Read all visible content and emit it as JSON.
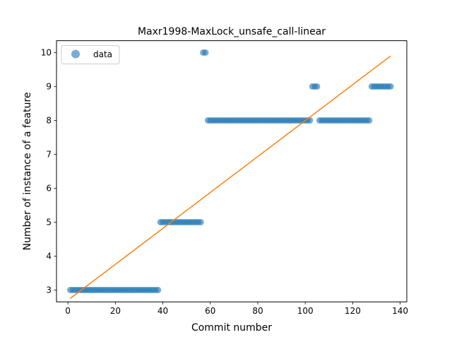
{
  "chart_data": {
    "type": "scatter",
    "title": "Maxr1998-MaxLock_unsafe_call-linear",
    "xlabel": "Commit number",
    "ylabel": "Number of instance of a feature",
    "xlim": [
      -4.8,
      142.8
    ],
    "ylim": [
      2.65,
      10.35
    ],
    "xticks": [
      0,
      20,
      40,
      60,
      80,
      100,
      120,
      140
    ],
    "yticks": [
      3,
      4,
      5,
      6,
      7,
      8,
      9,
      10
    ],
    "grid": false,
    "legend": {
      "placement": "top-left",
      "entries": [
        "data"
      ]
    },
    "colors": {
      "data": "#1f77b4",
      "fit": "#ff7f0e"
    },
    "series": [
      {
        "name": "data",
        "kind": "scatter",
        "segments": [
          {
            "x_from": 1,
            "x_to": 38,
            "y": 3
          },
          {
            "x_from": 39,
            "x_to": 56,
            "y": 5
          },
          {
            "x_from": 57,
            "x_to": 58,
            "y": 10
          },
          {
            "x_from": 59,
            "x_to": 102,
            "y": 8
          },
          {
            "x_from": 103,
            "x_to": 105,
            "y": 9
          },
          {
            "x_from": 106,
            "x_to": 127,
            "y": 8
          },
          {
            "x_from": 128,
            "x_to": 136,
            "y": 9
          }
        ]
      },
      {
        "kind": "line",
        "x": [
          1,
          136
        ],
        "y": [
          2.75,
          9.9
        ]
      }
    ]
  }
}
